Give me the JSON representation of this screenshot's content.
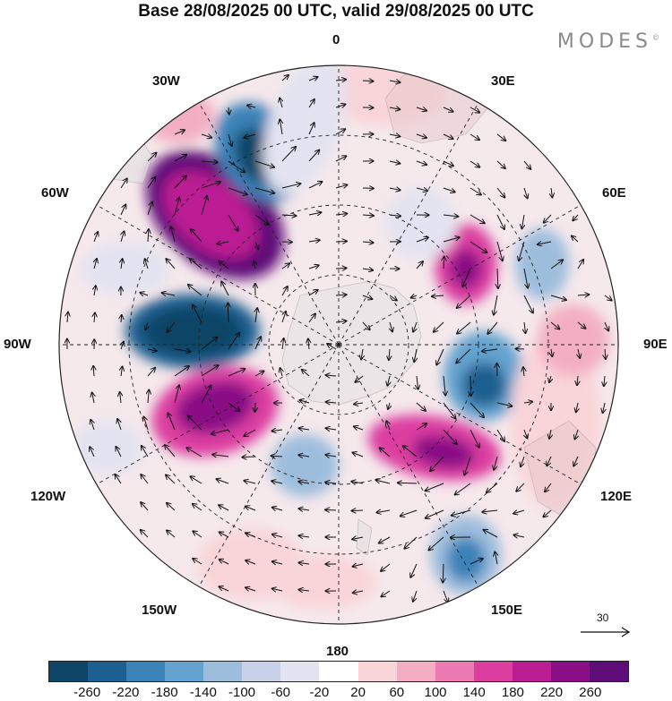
{
  "title": "Base 28/08/2025 00 UTC, valid 29/08/2025 00 UTC",
  "logo": "MODES",
  "logo_mark": "©",
  "meridian_labels": {
    "lon_0": "0",
    "lon_30e": "30E",
    "lon_60e": "60E",
    "lon_90e": "90E",
    "lon_120e": "120E",
    "lon_150e": "150E",
    "lon_180": "180",
    "lon_150w": "150W",
    "lon_120w": "120W",
    "lon_90w": "90W",
    "lon_60w": "60W",
    "lon_30w": "30W"
  },
  "reference_vector": "30",
  "colorbar": {
    "colors": [
      "#0e4466",
      "#1c5f90",
      "#3a82b8",
      "#64a2cf",
      "#9dbddd",
      "#c9d1e8",
      "#e3e3f1",
      "#ffffff",
      "#f9d4d8",
      "#f3aec3",
      "#ec7ab3",
      "#dc3ea0",
      "#bb1d93",
      "#8a0f86",
      "#5e0c78"
    ],
    "ticks": [
      "-260",
      "-220",
      "-180",
      "-140",
      "-100",
      "-60",
      "-20",
      "20",
      "60",
      "100",
      "140",
      "180",
      "220",
      "260"
    ]
  }
}
